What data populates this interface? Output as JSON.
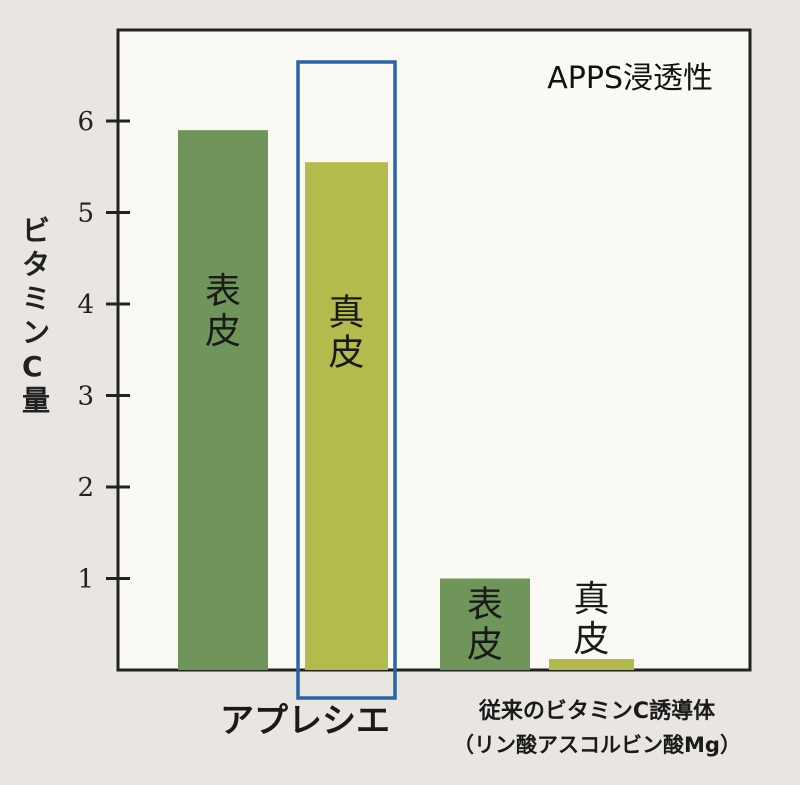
{
  "chart_data": {
    "type": "bar",
    "title": "APPS浸透性",
    "ylabel": "ビタミンC量",
    "ylim": [
      0,
      6.5
    ],
    "yticks": [
      1,
      2,
      3,
      4,
      5,
      6
    ],
    "groups": [
      {
        "label": "アプレシエ",
        "sublabel": ""
      },
      {
        "label": "従来のビタミンC誘導体",
        "sublabel": "（リン酸アスコルビン酸Mg）"
      }
    ],
    "bars": [
      {
        "group": 0,
        "label": "表皮",
        "value": 5.9,
        "color": "#6f955b"
      },
      {
        "group": 0,
        "label": "真皮",
        "value": 5.55,
        "color": "#b3bb4c",
        "highlighted": true
      },
      {
        "group": 1,
        "label": "表皮",
        "value": 1.0,
        "color": "#6f955b"
      },
      {
        "group": 1,
        "label": "真皮",
        "value": 0.12,
        "color": "#b3bb4c"
      }
    ],
    "highlight_color": "#2a64a8",
    "grid": false,
    "legend": "none"
  }
}
